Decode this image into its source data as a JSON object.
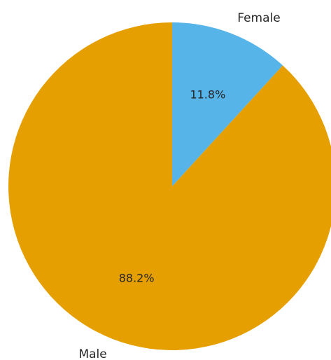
{
  "chart_data": {
    "type": "pie",
    "slices": [
      {
        "label": "Female",
        "value": 11.8,
        "pct_label": "11.8%",
        "color": "#56b4e9"
      },
      {
        "label": "Male",
        "value": 88.2,
        "pct_label": "88.2%",
        "color": "#e69f00"
      }
    ],
    "start_angle_deg": 90,
    "direction": "clockwise",
    "title": ""
  }
}
